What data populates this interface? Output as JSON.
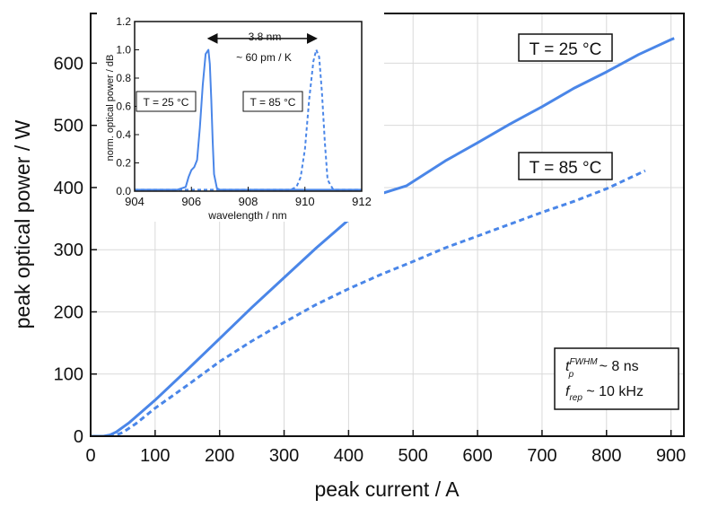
{
  "chart_data": [
    {
      "type": "line",
      "xlabel": "peak current / A",
      "ylabel": "peak optical power / W",
      "xlim": [
        0,
        920
      ],
      "ylim": [
        0,
        680
      ],
      "xticks": [
        0,
        100,
        200,
        300,
        400,
        500,
        600,
        700,
        800,
        900
      ],
      "yticks": [
        0,
        100,
        200,
        300,
        400,
        500,
        600
      ],
      "grid": true,
      "series": [
        {
          "name": "T = 25 °C",
          "style": "solid",
          "color": "#4a86e8",
          "x": [
            0,
            20,
            30,
            40,
            60,
            80,
            100,
            150,
            200,
            250,
            300,
            350,
            400,
            450,
            490,
            550,
            600,
            650,
            700,
            750,
            800,
            850,
            900,
            905
          ],
          "y": [
            0,
            0,
            2,
            7,
            22,
            40,
            58,
            107,
            157,
            207,
            255,
            303,
            348,
            390,
            403,
            443,
            472,
            502,
            530,
            560,
            586,
            614,
            638,
            640
          ]
        },
        {
          "name": "T = 85 °C",
          "style": "dashed",
          "color": "#4a86e8",
          "x": [
            0,
            30,
            40,
            50,
            70,
            100,
            150,
            200,
            250,
            300,
            350,
            400,
            450,
            500,
            550,
            600,
            650,
            700,
            750,
            800,
            860
          ],
          "y": [
            0,
            0,
            2,
            6,
            20,
            45,
            82,
            120,
            153,
            183,
            212,
            237,
            260,
            281,
            303,
            322,
            341,
            360,
            378,
            398,
            427
          ]
        }
      ],
      "annotations": [
        {
          "text": "T = 25 °C",
          "x": 800,
          "y": 628
        },
        {
          "text": "T = 85 °C",
          "x": 800,
          "y": 433
        },
        {
          "text_main": "t",
          "text_sub": "p",
          "text_sup": "FWHM",
          "text_rest": " ~ 8 ns"
        },
        {
          "text_main": "f",
          "text_sub": "rep",
          "text_rest": " ~ 10 kHz"
        }
      ]
    },
    {
      "type": "line",
      "inset": true,
      "xlabel": "wavelength / nm",
      "ylabel": "norm. optical power / dB",
      "xlim": [
        904,
        912
      ],
      "ylim": [
        0,
        1.2
      ],
      "xticks": [
        904,
        906,
        908,
        910,
        912
      ],
      "yticks": [
        0.0,
        0.2,
        0.4,
        0.6,
        0.8,
        1.0,
        1.2
      ],
      "ytick_labels": [
        "0.0",
        "0.2",
        "0.4",
        "0.6",
        "0.8",
        "1.0",
        "1.2"
      ],
      "series": [
        {
          "name": "T = 25 °C",
          "style": "solid",
          "color": "#4a86e8",
          "x": [
            904,
            905.5,
            905.8,
            905.9,
            906.0,
            906.1,
            906.2,
            906.3,
            906.4,
            906.5,
            906.6,
            906.65,
            906.7,
            906.75,
            906.8,
            906.9,
            907.0,
            908,
            912
          ],
          "y": [
            0.01,
            0.01,
            0.03,
            0.1,
            0.15,
            0.17,
            0.22,
            0.45,
            0.75,
            0.97,
            1.0,
            0.9,
            0.65,
            0.35,
            0.12,
            0.02,
            0.01,
            0.01,
            0.01
          ]
        },
        {
          "name": "T = 85 °C",
          "style": "dashed",
          "color": "#4a86e8",
          "x": [
            904,
            909.5,
            909.7,
            909.85,
            910.0,
            910.15,
            910.3,
            910.4,
            910.5,
            910.6,
            910.7,
            910.8,
            911.0,
            912
          ],
          "y": [
            0.01,
            0.01,
            0.03,
            0.1,
            0.3,
            0.65,
            0.92,
            1.0,
            0.95,
            0.7,
            0.35,
            0.08,
            0.01,
            0.01
          ]
        }
      ],
      "arrow": {
        "x_from": 906.6,
        "x_to": 910.4,
        "y": 1.08
      },
      "annotations": [
        {
          "text": "3.8 nm"
        },
        {
          "text": "~ 60 pm / K"
        },
        {
          "text": "T = 25 °C"
        },
        {
          "text": "T = 85 °C"
        }
      ]
    }
  ]
}
